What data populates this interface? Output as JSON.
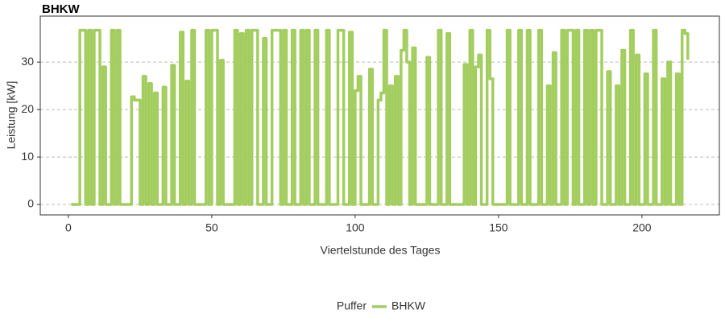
{
  "chart_data": {
    "type": "step",
    "title": "BHKW",
    "x_label": "Viertelstunde des Tages",
    "y_label": "Leistung [kW]",
    "legend_title": "Puffer",
    "legend_position": "bottom",
    "grid": true,
    "xlim": [
      -9.8,
      227
    ],
    "ylim": [
      -2.2,
      39.7
    ],
    "xticks": [
      0,
      50,
      100,
      150,
      200
    ],
    "yticks": [
      0,
      10,
      20,
      30
    ],
    "x": [
      1,
      2,
      3,
      4,
      5,
      6,
      7,
      8,
      9,
      10,
      11,
      12,
      13,
      14,
      15,
      16,
      17,
      18,
      19,
      20,
      21,
      22,
      23,
      24,
      25,
      26,
      27,
      28,
      29,
      30,
      31,
      32,
      33,
      34,
      35,
      36,
      37,
      38,
      39,
      40,
      41,
      42,
      43,
      44,
      45,
      46,
      47,
      48,
      49,
      50,
      51,
      52,
      53,
      54,
      55,
      56,
      57,
      58,
      59,
      60,
      61,
      62,
      63,
      64,
      65,
      66,
      67,
      68,
      69,
      70,
      71,
      72,
      73,
      74,
      75,
      76,
      77,
      78,
      79,
      80,
      81,
      82,
      83,
      84,
      85,
      86,
      87,
      88,
      89,
      90,
      91,
      92,
      93,
      94,
      95,
      96,
      97,
      98,
      99,
      100,
      101,
      102,
      103,
      104,
      105,
      106,
      107,
      108,
      109,
      110,
      111,
      112,
      113,
      114,
      115,
      116,
      117,
      118,
      119,
      120,
      121,
      122,
      123,
      124,
      125,
      126,
      127,
      128,
      129,
      130,
      131,
      132,
      133,
      134,
      135,
      136,
      137,
      138,
      139,
      140,
      141,
      142,
      143,
      144,
      145,
      146,
      147,
      148,
      149,
      150,
      151,
      152,
      153,
      154,
      155,
      156,
      157,
      158,
      159,
      160,
      161,
      162,
      163,
      164,
      165,
      166,
      167,
      168,
      169,
      170,
      171,
      172,
      173,
      174,
      175,
      176,
      177,
      178,
      179,
      180,
      181,
      182,
      183,
      184,
      185,
      186,
      187,
      188,
      189,
      190,
      191,
      192,
      193,
      194,
      195,
      196,
      197,
      198,
      199,
      200,
      201,
      202,
      203,
      204,
      205,
      206,
      207,
      208,
      209,
      210,
      211,
      212,
      213,
      214,
      215,
      216
    ],
    "series": [
      {
        "name": "BHKW",
        "color": "#a3cd5f",
        "values": [
          0,
          0,
          0,
          36.7,
          36.7,
          0,
          36.7,
          0,
          36.7,
          36.7,
          0,
          29,
          0,
          0,
          36.7,
          0,
          36.7,
          0,
          0,
          0,
          0,
          22.7,
          22,
          22,
          0,
          27,
          0,
          25.5,
          0,
          23.5,
          0,
          0,
          24.7,
          0,
          0,
          29.3,
          0,
          0,
          36.3,
          0,
          26,
          0,
          36.7,
          0,
          0,
          0,
          0,
          36.7,
          0,
          36.7,
          36.7,
          0,
          30.4,
          0,
          0,
          0,
          0,
          36.7,
          0,
          36,
          0,
          36.7,
          0,
          36.7,
          36.7,
          0,
          0,
          35,
          0,
          0,
          36.7,
          36.7,
          36.7,
          0,
          36.7,
          0,
          0,
          36.7,
          0,
          0,
          36.7,
          0,
          36.7,
          0,
          0,
          36.7,
          0,
          0,
          0,
          36.7,
          0,
          0,
          0,
          36.7,
          36.7,
          0,
          0,
          36.3,
          0,
          24,
          27,
          0,
          0,
          0,
          28.5,
          0,
          0,
          22,
          23.5,
          36.7,
          0,
          25,
          0,
          27,
          0,
          32.5,
          36.7,
          30,
          0,
          33,
          0,
          0,
          0,
          0,
          31,
          0,
          0,
          0,
          36.7,
          0,
          0,
          36,
          0,
          0,
          0,
          0,
          0,
          29.5,
          0,
          36.7,
          0,
          29,
          31.5,
          0,
          0,
          36.7,
          26.5,
          0,
          0,
          0,
          0,
          0,
          36.7,
          0,
          0,
          0,
          36.7,
          0,
          0,
          36.7,
          0,
          0,
          0,
          36.7,
          0,
          0,
          25,
          0,
          32,
          0,
          0,
          36.7,
          0,
          36.7,
          36.7,
          0,
          36.7,
          0,
          0,
          36.7,
          0,
          36.7,
          0,
          36.7,
          36.7,
          0,
          0,
          28,
          0,
          0,
          25,
          0,
          32.5,
          0,
          0,
          36.7,
          0,
          31.5,
          0,
          0,
          27.5,
          0,
          0,
          36.7,
          0,
          0,
          26.5,
          0,
          30,
          0,
          0,
          27.5,
          0,
          36.7,
          36,
          30.5
        ]
      }
    ]
  }
}
